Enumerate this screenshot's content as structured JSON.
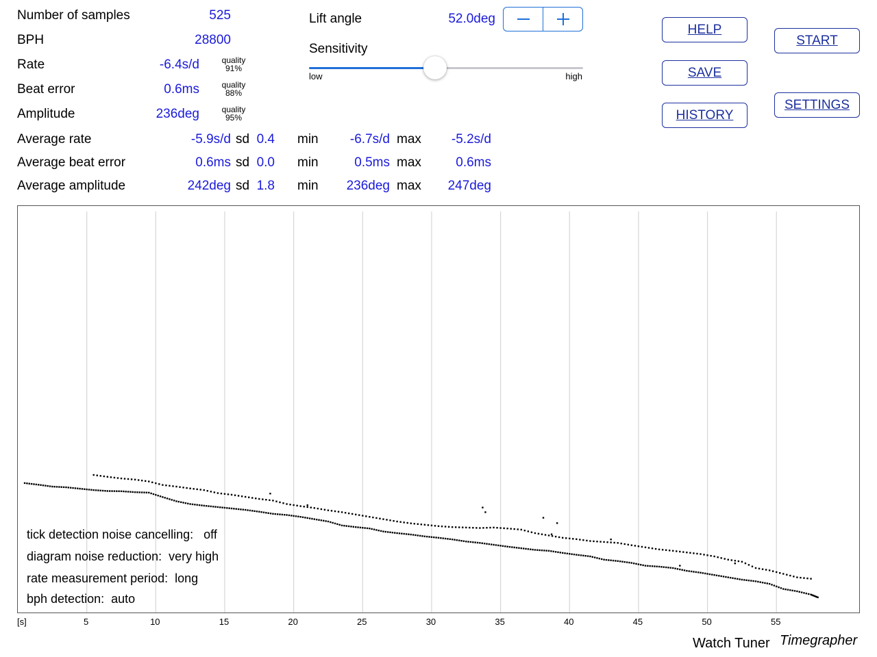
{
  "stats": [
    {
      "label": "Number of samples",
      "value": "525"
    },
    {
      "label": "BPH",
      "value": "28800"
    },
    {
      "label": "Rate",
      "value": "-6.4s/d",
      "quality_label": "quality",
      "quality": "91%"
    },
    {
      "label": "Beat error",
      "value": "0.6ms",
      "quality_label": "quality",
      "quality": "88%"
    },
    {
      "label": "Amplitude",
      "value": "236deg",
      "quality_label": "quality",
      "quality": "95%"
    }
  ],
  "averages": [
    {
      "label": "Average rate",
      "value": "-5.9s/d",
      "sd_label": "sd",
      "sd": "0.4",
      "min_label": "min",
      "min": "-6.7s/d",
      "max_label": "max",
      "max": "-5.2s/d"
    },
    {
      "label": "Average beat error",
      "value": "0.6ms",
      "sd_label": "sd",
      "sd": "0.0",
      "min_label": "min",
      "min": "0.5ms",
      "max_label": "max",
      "max": "0.6ms"
    },
    {
      "label": "Average amplitude",
      "value": "242deg",
      "sd_label": "sd",
      "sd": "1.8",
      "min_label": "min",
      "min": "236deg",
      "max_label": "max",
      "max": "247deg"
    }
  ],
  "lift": {
    "label": "Lift angle",
    "value": "52.0deg",
    "decrease_icon": "minus-icon",
    "increase_icon": "plus-icon"
  },
  "sensitivity": {
    "label": "Sensitivity",
    "low": "low",
    "high": "high",
    "level": 0.46
  },
  "buttons": {
    "help": "HELP",
    "save": "SAVE",
    "history": "HISTORY",
    "start": "START",
    "settings": "SETTINGS"
  },
  "accent_color": "#1a1adb",
  "chart_data": {
    "type": "scatter",
    "xlabel": "[s]",
    "x_ticks": [
      "5",
      "10",
      "15",
      "20",
      "25",
      "30",
      "35",
      "40",
      "45",
      "50",
      "55"
    ],
    "xlim": [
      0,
      61
    ],
    "ylim": [
      0,
      100
    ],
    "grid": "vertical",
    "series": [
      {
        "points": [
          [
            0.5,
            48.5
          ],
          [
            1.5,
            49.2
          ],
          [
            2.5,
            50.0
          ],
          [
            3.5,
            50.3
          ],
          [
            4.5,
            50.9
          ],
          [
            5.5,
            51.5
          ],
          [
            6.5,
            51.9
          ],
          [
            7.5,
            52.0
          ],
          [
            8.5,
            52.4
          ],
          [
            9.5,
            52.6
          ],
          [
            10.5,
            54.5
          ],
          [
            11.5,
            56.3
          ],
          [
            12.5,
            57.5
          ],
          [
            13.5,
            58.2
          ],
          [
            14.5,
            58.8
          ],
          [
            15.5,
            59.4
          ],
          [
            16.5,
            60.0
          ],
          [
            17.5,
            60.8
          ],
          [
            18.5,
            61.7
          ],
          [
            19.5,
            62.2
          ],
          [
            20.5,
            63.0
          ],
          [
            21.5,
            64.0
          ],
          [
            22.5,
            65.0
          ],
          [
            23.5,
            66.7
          ],
          [
            24.5,
            67.4
          ],
          [
            25.5,
            68.0
          ],
          [
            26.5,
            69.3
          ],
          [
            27.5,
            70.0
          ],
          [
            28.5,
            70.6
          ],
          [
            29.5,
            71.4
          ],
          [
            30.5,
            72.0
          ],
          [
            31.5,
            72.7
          ],
          [
            32.5,
            73.6
          ],
          [
            33.5,
            74.2
          ],
          [
            34.5,
            75.0
          ],
          [
            35.5,
            75.8
          ],
          [
            36.5,
            76.5
          ],
          [
            37.5,
            77.2
          ],
          [
            38.5,
            77.6
          ],
          [
            39.5,
            78.5
          ],
          [
            40.5,
            79.3
          ],
          [
            41.5,
            80.0
          ],
          [
            42.5,
            81.4
          ],
          [
            43.5,
            82.0
          ],
          [
            44.5,
            82.8
          ],
          [
            45.5,
            84.0
          ],
          [
            46.5,
            84.4
          ],
          [
            47.5,
            85.0
          ],
          [
            48.5,
            86.2
          ],
          [
            49.5,
            87.0
          ],
          [
            50.5,
            88.0
          ],
          [
            51.5,
            89.0
          ],
          [
            52.5,
            90.0
          ],
          [
            53.5,
            90.7
          ],
          [
            54.5,
            91.8
          ],
          [
            55.5,
            94.0
          ],
          [
            56.5,
            95.0
          ],
          [
            57.5,
            96.4
          ],
          [
            58.0,
            97.6
          ]
        ]
      },
      {
        "points": [
          [
            5.5,
            45.0
          ],
          [
            6.5,
            45.8
          ],
          [
            7.5,
            46.5
          ],
          [
            8.5,
            47.0
          ],
          [
            9.5,
            47.8
          ],
          [
            10.5,
            49.3
          ],
          [
            11.5,
            50.0
          ],
          [
            12.5,
            50.8
          ],
          [
            13.5,
            51.5
          ],
          [
            14.5,
            52.8
          ],
          [
            15.5,
            53.5
          ],
          [
            16.5,
            54.4
          ],
          [
            17.5,
            55.3
          ],
          [
            18.5,
            56.0
          ],
          [
            19.5,
            57.5
          ],
          [
            20.5,
            58.4
          ],
          [
            21.5,
            59.2
          ],
          [
            22.5,
            60.2
          ],
          [
            23.5,
            61.0
          ],
          [
            24.5,
            62.0
          ],
          [
            25.5,
            63.0
          ],
          [
            26.5,
            64.0
          ],
          [
            27.5,
            65.0
          ],
          [
            28.5,
            65.8
          ],
          [
            29.5,
            66.4
          ],
          [
            30.5,
            67.0
          ],
          [
            31.5,
            67.4
          ],
          [
            32.5,
            67.6
          ],
          [
            33.5,
            67.8
          ],
          [
            34.5,
            67.6
          ],
          [
            35.5,
            68.0
          ],
          [
            36.5,
            68.5
          ],
          [
            37.5,
            70.0
          ],
          [
            38.5,
            71.0
          ],
          [
            39.5,
            72.0
          ],
          [
            40.5,
            72.6
          ],
          [
            41.5,
            73.4
          ],
          [
            42.5,
            73.8
          ],
          [
            43.5,
            74.2
          ],
          [
            44.5,
            75.2
          ],
          [
            45.5,
            76.1
          ],
          [
            46.5,
            77.0
          ],
          [
            47.5,
            77.6
          ],
          [
            48.5,
            78.3
          ],
          [
            49.5,
            79.0
          ],
          [
            50.5,
            80.0
          ],
          [
            51.5,
            81.4
          ],
          [
            52.5,
            82.3
          ],
          [
            53.5,
            85.0
          ],
          [
            54.5,
            86.0
          ],
          [
            55.5,
            87.5
          ],
          [
            56.5,
            89.0
          ],
          [
            57.5,
            89.6
          ]
        ]
      }
    ],
    "outliers": [
      [
        18.3,
        53.0
      ],
      [
        21.0,
        58.0
      ],
      [
        33.7,
        59.0
      ],
      [
        33.9,
        61.0
      ],
      [
        38.1,
        63.4
      ],
      [
        39.1,
        65.7
      ],
      [
        38.7,
        70.5
      ],
      [
        43.0,
        72.7
      ],
      [
        48.0,
        84.0
      ],
      [
        52.0,
        83.0
      ]
    ]
  },
  "settings_info": [
    {
      "label": "tick detection noise cancelling:",
      "value": "off"
    },
    {
      "label": "diagram noise reduction:",
      "value": "very high"
    },
    {
      "label": "rate measurement period:",
      "value": "long"
    },
    {
      "label": "bph detection:",
      "value": "auto"
    }
  ],
  "footer": {
    "brand": "Watch Tuner",
    "product": "Timegrapher"
  }
}
